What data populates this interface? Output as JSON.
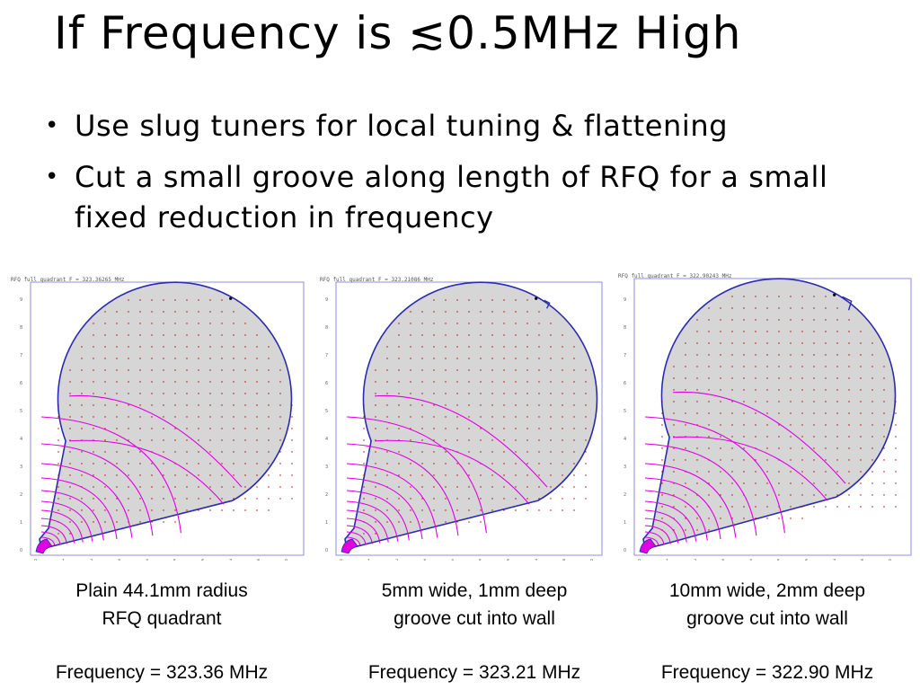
{
  "title": "If Frequency is ≲0.5MHz High",
  "bullets": [
    "Use slug tuners for local tuning & flattening",
    "Cut a small groove along length of RFQ for a small fixed reduction in frequency"
  ],
  "panels": [
    {
      "header": "RFQ full quadrant  F = 323.36265 MHz",
      "caption_line1": "Plain 44.1mm radius",
      "caption_line2": "RFQ quadrant",
      "frequency": "Frequency = 323.36 MHz",
      "groove": "none"
    },
    {
      "header": "RFQ full quadrant  F = 323.21086 MHz",
      "caption_line1": "5mm wide, 1mm deep",
      "caption_line2": "groove cut into wall",
      "frequency": "Frequency = 323.21 MHz",
      "groove": "5mm wide, 1mm deep"
    },
    {
      "header": "RFQ full quadrant  F = 322.90243 MHz",
      "caption_line1": "10mm wide, 2mm deep",
      "caption_line2": "groove cut into wall",
      "frequency": "Frequency = 322.90 MHz",
      "groove": "10mm wide, 2mm deep"
    }
  ],
  "axis_ticks_y": [
    "9",
    "8",
    "7",
    "6",
    "5",
    "4",
    "3",
    "2",
    "1",
    "0"
  ],
  "axis_ticks_x": [
    "0",
    "1",
    "2",
    "3",
    "4",
    "5",
    "6",
    "7",
    "8",
    "9"
  ],
  "colors": {
    "outline": "#2b2bb0",
    "field_lines": "#e000e0",
    "fill": "#d6d6d6",
    "frame": "#8c8ce6",
    "arrows": "#b00000"
  }
}
